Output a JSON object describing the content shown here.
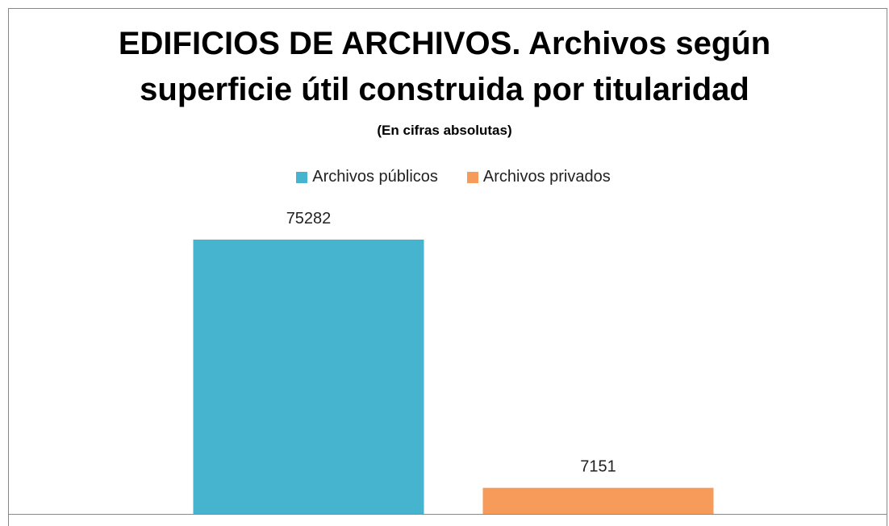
{
  "chart_data": {
    "type": "bar",
    "title": "EDIFICIOS DE ARCHIVOS. Archivos según superficie útil construida por titularidad",
    "subtitle": "(En cifras absolutas)",
    "categories": [
      null
    ],
    "series": [
      {
        "name": "Archivos públicos",
        "color": "#46b3cf",
        "values": [
          75282
        ]
      },
      {
        "name": "Archivos privados",
        "color": "#f79b5b",
        "values": [
          7151
        ]
      }
    ],
    "legend": "top"
  }
}
